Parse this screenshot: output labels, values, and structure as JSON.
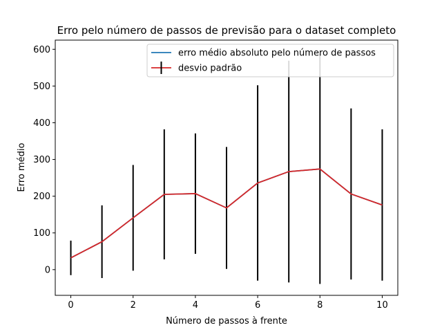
{
  "chart_data": {
    "type": "line",
    "title": "Erro pelo número de passos de previsão para o dataset completo",
    "xlabel": "Número de passos à frente",
    "ylabel": "Erro médio",
    "xlim": [
      -0.5,
      10.5
    ],
    "ylim": [
      -70,
      625
    ],
    "x_ticks": [
      0,
      2,
      4,
      6,
      8,
      10
    ],
    "y_ticks": [
      0,
      100,
      200,
      300,
      400,
      500,
      600
    ],
    "grid": false,
    "legend_position": "top-right",
    "x": [
      0,
      1,
      2,
      3,
      4,
      5,
      6,
      7,
      8,
      9,
      10
    ],
    "series": [
      {
        "name": "erro médio absoluto pelo número de passos",
        "color": "#1f77b4",
        "values": [
          32,
          76,
          141,
          205,
          207,
          168,
          236,
          267,
          274,
          206,
          176
        ]
      },
      {
        "name": "desvio padrão",
        "color": "#d62728",
        "errorbar_color": "#000000",
        "values": [
          32,
          76,
          141,
          205,
          207,
          168,
          236,
          267,
          274,
          206,
          176
        ],
        "error": [
          47,
          99,
          144,
          177,
          164,
          166,
          266,
          302,
          313,
          233,
          206
        ]
      }
    ]
  }
}
